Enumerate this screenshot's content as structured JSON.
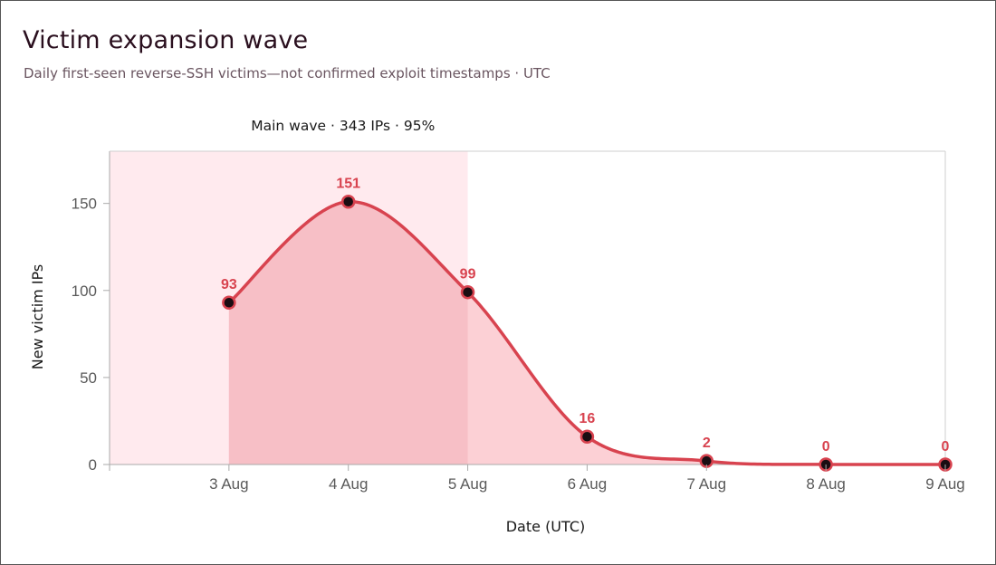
{
  "header": {
    "title": "Victim expansion wave",
    "subtitle": "Daily first-seen reverse-SSH victims—not confirmed exploit timestamps · UTC"
  },
  "colors": {
    "accent": "#d8434f",
    "marker_fill": "#1a0d12",
    "band_fill": "#ffeaee",
    "area_fill": "#fcd0d5",
    "area_fill_dark": "#f7bfc6",
    "axis": "#aaaaaa"
  },
  "chart_data": {
    "type": "area",
    "xlabel": "Date (UTC)",
    "ylabel": "New victim IPs",
    "ylim": [
      0,
      180
    ],
    "yticks": [
      0,
      50,
      100,
      150
    ],
    "categories": [
      "3 Aug",
      "4 Aug",
      "5 Aug",
      "6 Aug",
      "7 Aug",
      "8 Aug",
      "9 Aug"
    ],
    "x_padding_categories": 1,
    "series": [
      {
        "values": [
          93,
          151,
          99,
          16,
          2,
          0,
          0
        ],
        "data_labels": [
          "93",
          "151",
          "99",
          "16",
          "2",
          "0",
          "0"
        ]
      }
    ],
    "annotation": {
      "label": "Main wave · 343 IPs · 95%",
      "band_start_category": "2 Aug",
      "band_end_category": "5 Aug",
      "highlight_start_category": "3 Aug",
      "highlight_end_category": "5 Aug"
    },
    "grid": false,
    "legend": "none"
  }
}
